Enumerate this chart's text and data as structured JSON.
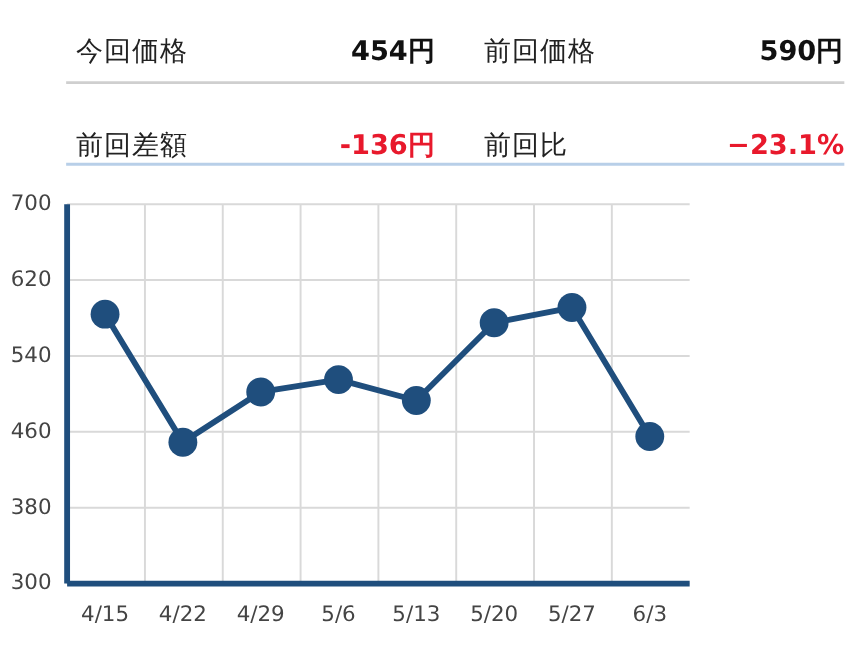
{
  "chart_data": [
    {
      "type": "other",
      "annotations": [
        "今回価格",
        "454円",
        "前回価格",
        "590円",
        "前回差額",
        "-136円",
        "前回比",
        "−23.1%"
      ],
      "colors": [
        "#222222",
        "#111111",
        "#222222",
        "#111111",
        "#222222",
        "#e8192c",
        "#222222",
        "#e8192c"
      ]
    },
    {
      "type": "line",
      "categories": [
        "4/15",
        "4/22",
        "4/29",
        "5/6",
        "5/13",
        "5/20",
        "5/27",
        "6/3"
      ],
      "series": [
        {
          "color": "#1f4e7d",
          "values": [
            583,
            448,
            501,
            514,
            492,
            574,
            590,
            454
          ]
        }
      ],
      "ylim": [
        300,
        700
      ],
      "yticks": [
        300,
        380,
        460,
        540,
        620,
        700
      ],
      "grid": true,
      "marker": "circle",
      "line_style": "solid"
    }
  ]
}
